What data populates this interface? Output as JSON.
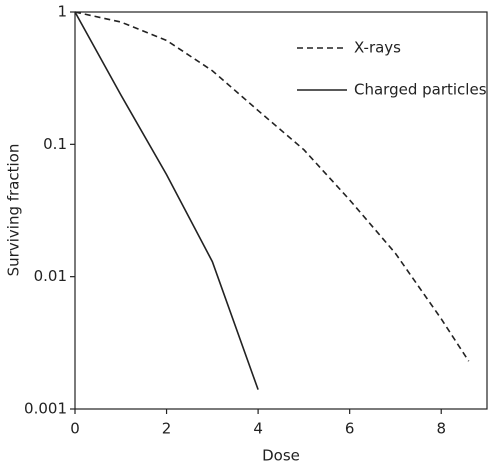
{
  "chart_data": {
    "type": "line",
    "x_label": "Dose",
    "y_label": "Surviving fraction",
    "xlim": [
      0,
      9
    ],
    "xticks": [
      0,
      2,
      4,
      6,
      8
    ],
    "ylim": [
      0.001,
      1
    ],
    "yticks": [
      0.001,
      0.01,
      0.1,
      1
    ],
    "ylog": true,
    "legend": "upper right",
    "series": [
      {
        "name": "X-rays",
        "color": "#222222",
        "dash": "dashed",
        "x": [
          0,
          1,
          2,
          3,
          4,
          5,
          6,
          7,
          8,
          8.6
        ],
        "values": [
          1,
          0.84,
          0.61,
          0.36,
          0.18,
          0.091,
          0.038,
          0.015,
          0.0048,
          0.0023
        ]
      },
      {
        "name": "Charged particles",
        "color": "#222222",
        "dash": "solid",
        "x": [
          0,
          1,
          2,
          3,
          4
        ],
        "values": [
          1,
          0.237,
          0.059,
          0.013,
          0.0014
        ]
      }
    ]
  }
}
